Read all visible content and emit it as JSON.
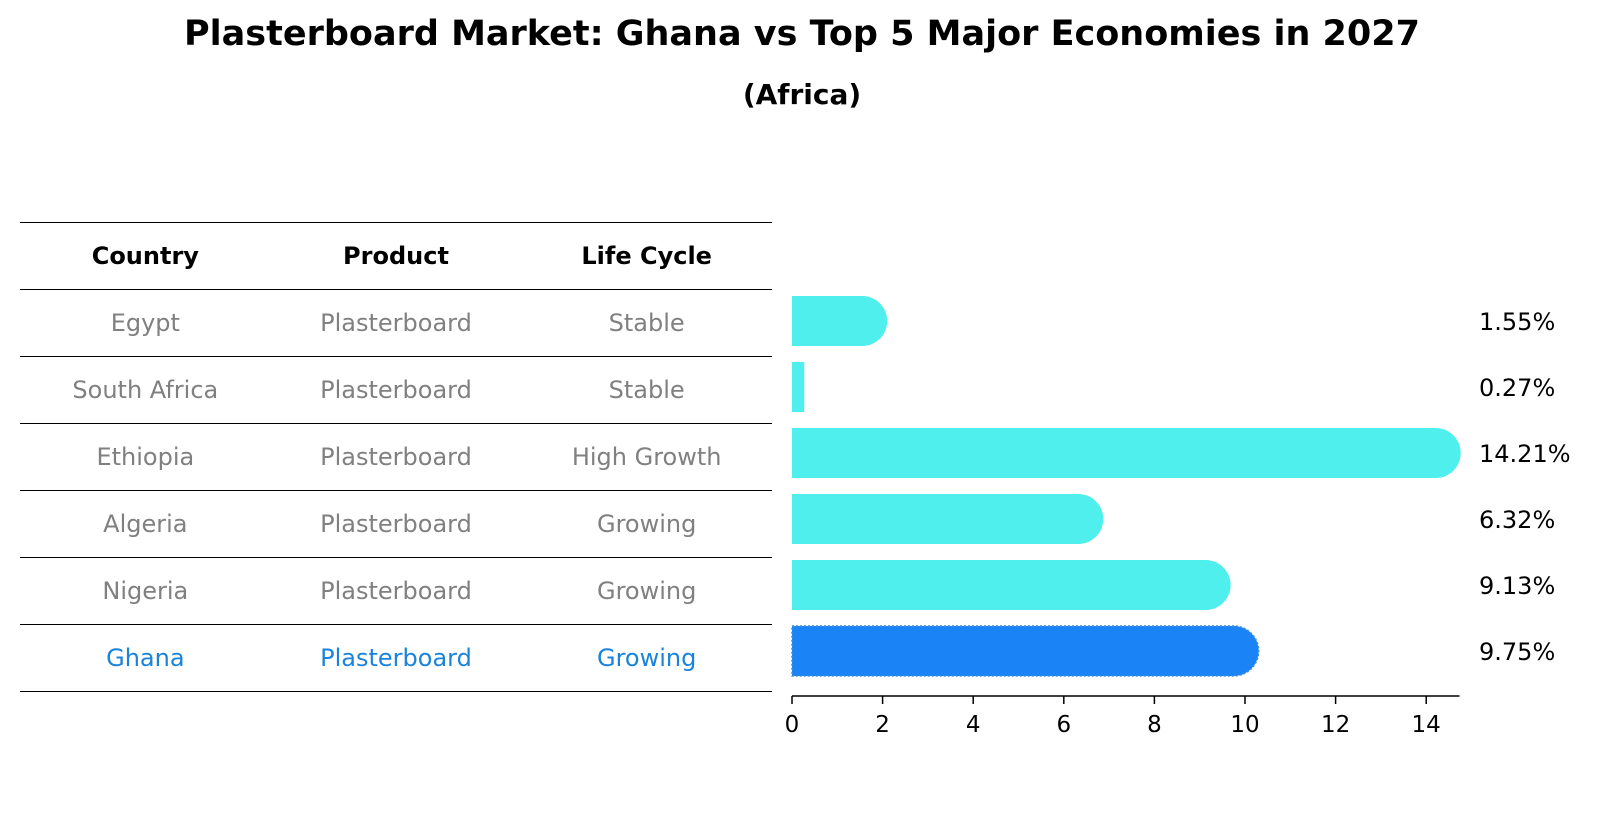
{
  "title": "Plasterboard Market: Ghana vs Top 5 Major Economies in 2027",
  "subtitle": "(Africa)",
  "table": {
    "headers": [
      "Country",
      "Product",
      "Life Cycle"
    ],
    "rows": [
      [
        "Egypt",
        "Plasterboard",
        "Stable"
      ],
      [
        "South Africa",
        "Plasterboard",
        "Stable"
      ],
      [
        "Ethiopia",
        "Plasterboard",
        "High Growth"
      ],
      [
        "Algeria",
        "Plasterboard",
        "Growing"
      ],
      [
        "Nigeria",
        "Plasterboard",
        "Growing"
      ],
      [
        "Ghana",
        "Plasterboard",
        "Growing"
      ]
    ]
  },
  "colors": {
    "bar": "#4eefed",
    "highlight": "#1a83f5",
    "muted_text": "#808080",
    "highlight_text": "#1a83db"
  },
  "chart_data": {
    "type": "bar",
    "orientation": "horizontal",
    "title": "Plasterboard Market: Ghana vs Top 5 Major Economies in 2027",
    "subtitle": "(Africa)",
    "categories": [
      "Egypt",
      "South Africa",
      "Ethiopia",
      "Algeria",
      "Nigeria",
      "Ghana"
    ],
    "values": [
      1.55,
      0.27,
      14.21,
      6.32,
      9.13,
      9.75
    ],
    "value_labels": [
      "1.55%",
      "0.27%",
      "14.21%",
      "6.32%",
      "9.13%",
      "9.75%"
    ],
    "highlight": "Ghana",
    "xlim": [
      0,
      15
    ],
    "xticks": [
      0,
      2,
      4,
      6,
      8,
      10,
      12,
      14
    ],
    "xlabel": "",
    "ylabel": "",
    "grid": false
  }
}
